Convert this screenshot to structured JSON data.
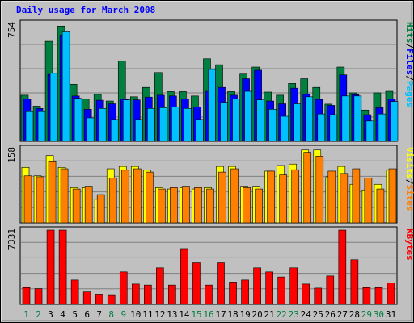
{
  "chart_data": {
    "type": "bar",
    "title": "Daily usage for March 2008",
    "colors": {
      "background": "#c0c0c0",
      "plot": "#c0c0c0",
      "title": "#0000ff",
      "hits": "#008040",
      "files": "#0000ff",
      "pages": "#00c0ff",
      "visits": "#ffff00",
      "sites": "#ff8000",
      "kbytes": "#ff0000",
      "weekend_label": "#008040",
      "weekday_label": "#000000"
    },
    "categories": [
      "1",
      "2",
      "3",
      "4",
      "5",
      "6",
      "7",
      "8",
      "9",
      "10",
      "11",
      "12",
      "13",
      "14",
      "15",
      "16",
      "17",
      "18",
      "19",
      "20",
      "21",
      "22",
      "23",
      "24",
      "25",
      "26",
      "27",
      "28",
      "29",
      "30",
      "31"
    ],
    "weekend_days": [
      "1",
      "2",
      "8",
      "9",
      "15",
      "16",
      "22",
      "23",
      "29",
      "30"
    ],
    "panels": [
      {
        "id": "hits",
        "max_label": "754",
        "ymax": 754,
        "legend": [
          {
            "text": "Hits",
            "series": "hits"
          },
          {
            "text": "/",
            "series": null
          },
          {
            "text": "Files",
            "series": "files"
          },
          {
            "text": "/",
            "series": null
          },
          {
            "text": "Pages",
            "series": "pages"
          }
        ],
        "series": [
          {
            "name": "Hits",
            "color_key": "hits",
            "values": [
              295,
              225,
              640,
              737,
              365,
              270,
              300,
              258,
              515,
              285,
              345,
              440,
              318,
              318,
              290,
              528,
              490,
              318,
              430,
              475,
              315,
              295,
              370,
              400,
              345,
              238,
              475,
              310,
              200,
              310,
              320
            ]
          },
          {
            "name": "Files",
            "color_key": "files",
            "values": [
              270,
              210,
              428,
              680,
              290,
              205,
              263,
              240,
              270,
              265,
              283,
              295,
              290,
              270,
              220,
              320,
              345,
              295,
              400,
              455,
              258,
              240,
              340,
              300,
              268,
              230,
              425,
              298,
              170,
              215,
              270
            ]
          },
          {
            "name": "Pages",
            "color_key": "pages",
            "values": [
              190,
              190,
              435,
              700,
              275,
              150,
              210,
              140,
              265,
              140,
              210,
              215,
              220,
              210,
              140,
              460,
              250,
              270,
              320,
              265,
              205,
              160,
              240,
              285,
              175,
              170,
              290,
              290,
              130,
              175,
              255
            ]
          }
        ]
      },
      {
        "id": "visits",
        "max_label": "158",
        "ymax": 158,
        "legend": [
          {
            "text": "Visits",
            "series": "visits"
          },
          {
            "text": "/",
            "series": null
          },
          {
            "text": "Sites",
            "series": "sites"
          }
        ],
        "series": [
          {
            "name": "Visits",
            "color_key": "visits",
            "values": [
              118,
              100,
              143,
              118,
              75,
              75,
              50,
              115,
              120,
              120,
              112,
              75,
              72,
              75,
              72,
              75,
              120,
              120,
              78,
              78,
              110,
              122,
              125,
              155,
              155,
              98,
              120,
              82,
              70,
              82,
              112
            ]
          },
          {
            "name": "Sites",
            "color_key": "sites",
            "values": [
              100,
              98,
              130,
              115,
              72,
              78,
              60,
              95,
              112,
              115,
              108,
              72,
              75,
              78,
              75,
              72,
              108,
              115,
              75,
              72,
              110,
              102,
              113,
              150,
              142,
              110,
              105,
              115,
              95,
              72,
              115
            ]
          }
        ]
      },
      {
        "id": "kbytes",
        "max_label": "7331",
        "ymax": 7331,
        "legend": [
          {
            "text": "KBytes",
            "series": "kbytes"
          }
        ],
        "series": [
          {
            "name": "KBytes",
            "color_key": "kbytes",
            "values": [
              1650,
              1550,
              7331,
              7331,
              2400,
              1300,
              1000,
              950,
              3200,
              2000,
              1900,
              3600,
              1900,
              5500,
              4100,
              1900,
              4100,
              2200,
              2400,
              3600,
              3200,
              2700,
              3600,
              2000,
              1600,
              2800,
              7331,
              4400,
              1650,
              1650,
              2100
            ]
          }
        ]
      }
    ]
  }
}
